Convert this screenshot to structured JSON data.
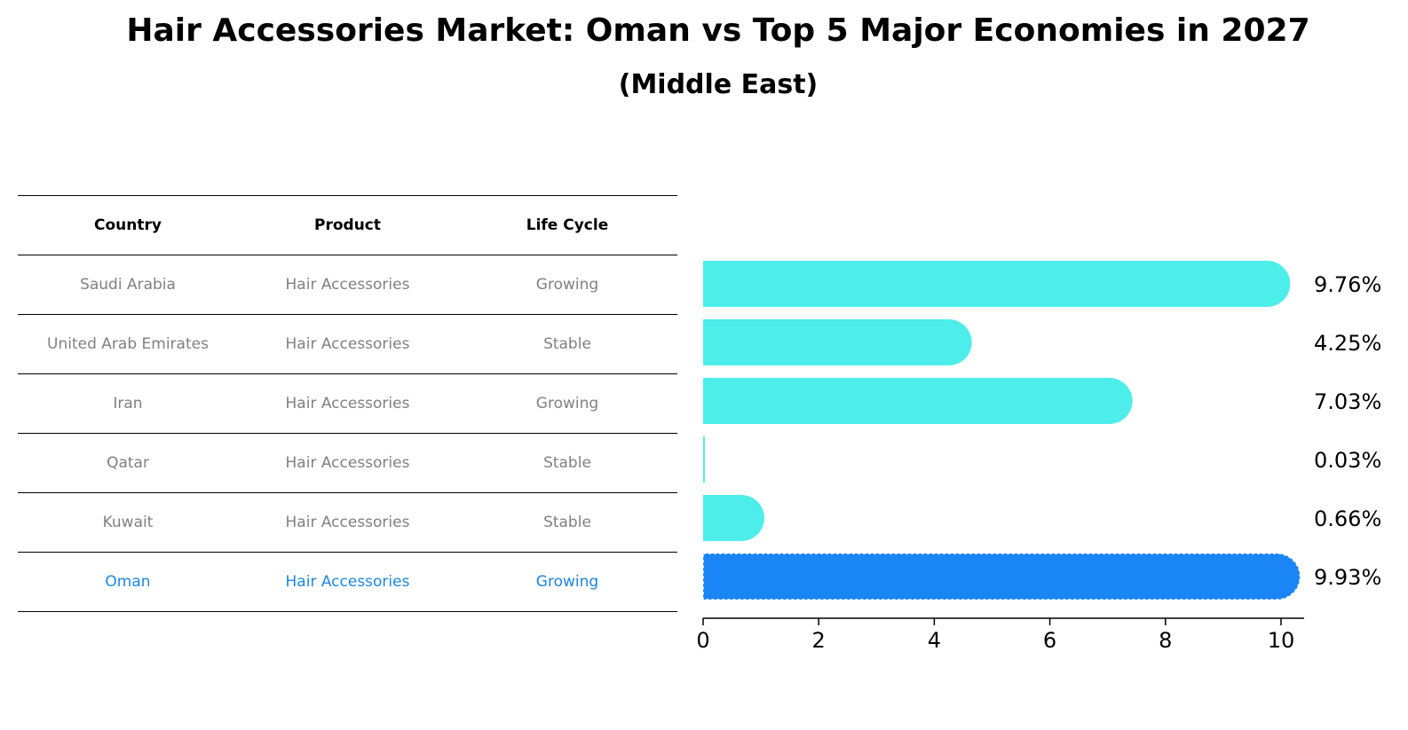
{
  "title": "Hair Accessories Market: Oman vs Top 5 Major Economies in 2027",
  "subtitle": "(Middle East)",
  "table": {
    "headers": [
      "Country",
      "Product",
      "Life Cycle"
    ],
    "rows": [
      [
        "Saudi Arabia",
        "Hair Accessories",
        "Growing"
      ],
      [
        "United Arab Emirates",
        "Hair Accessories",
        "Stable"
      ],
      [
        "Iran",
        "Hair Accessories",
        "Growing"
      ],
      [
        "Qatar",
        "Hair Accessories",
        "Stable"
      ],
      [
        "Kuwait",
        "Hair Accessories",
        "Stable"
      ],
      [
        "Oman",
        "Hair Accessories",
        "Growing"
      ]
    ],
    "highlight_row": 5
  },
  "chart_data": {
    "type": "bar",
    "orientation": "horizontal",
    "categories": [
      "Saudi Arabia",
      "United Arab Emirates",
      "Iran",
      "Qatar",
      "Kuwait",
      "Oman"
    ],
    "values": [
      9.76,
      4.25,
      7.03,
      0.03,
      0.66,
      9.93
    ],
    "value_labels": [
      "9.76%",
      "4.25%",
      "7.03%",
      "0.03%",
      "0.66%",
      "9.93%"
    ],
    "xlim": [
      0,
      10.4
    ],
    "xticks": [
      0,
      2,
      4,
      6,
      8,
      10
    ],
    "grid": false,
    "colors": {
      "default": "#4deeea",
      "highlight": "#1a85f5"
    },
    "highlight_index": 5
  }
}
